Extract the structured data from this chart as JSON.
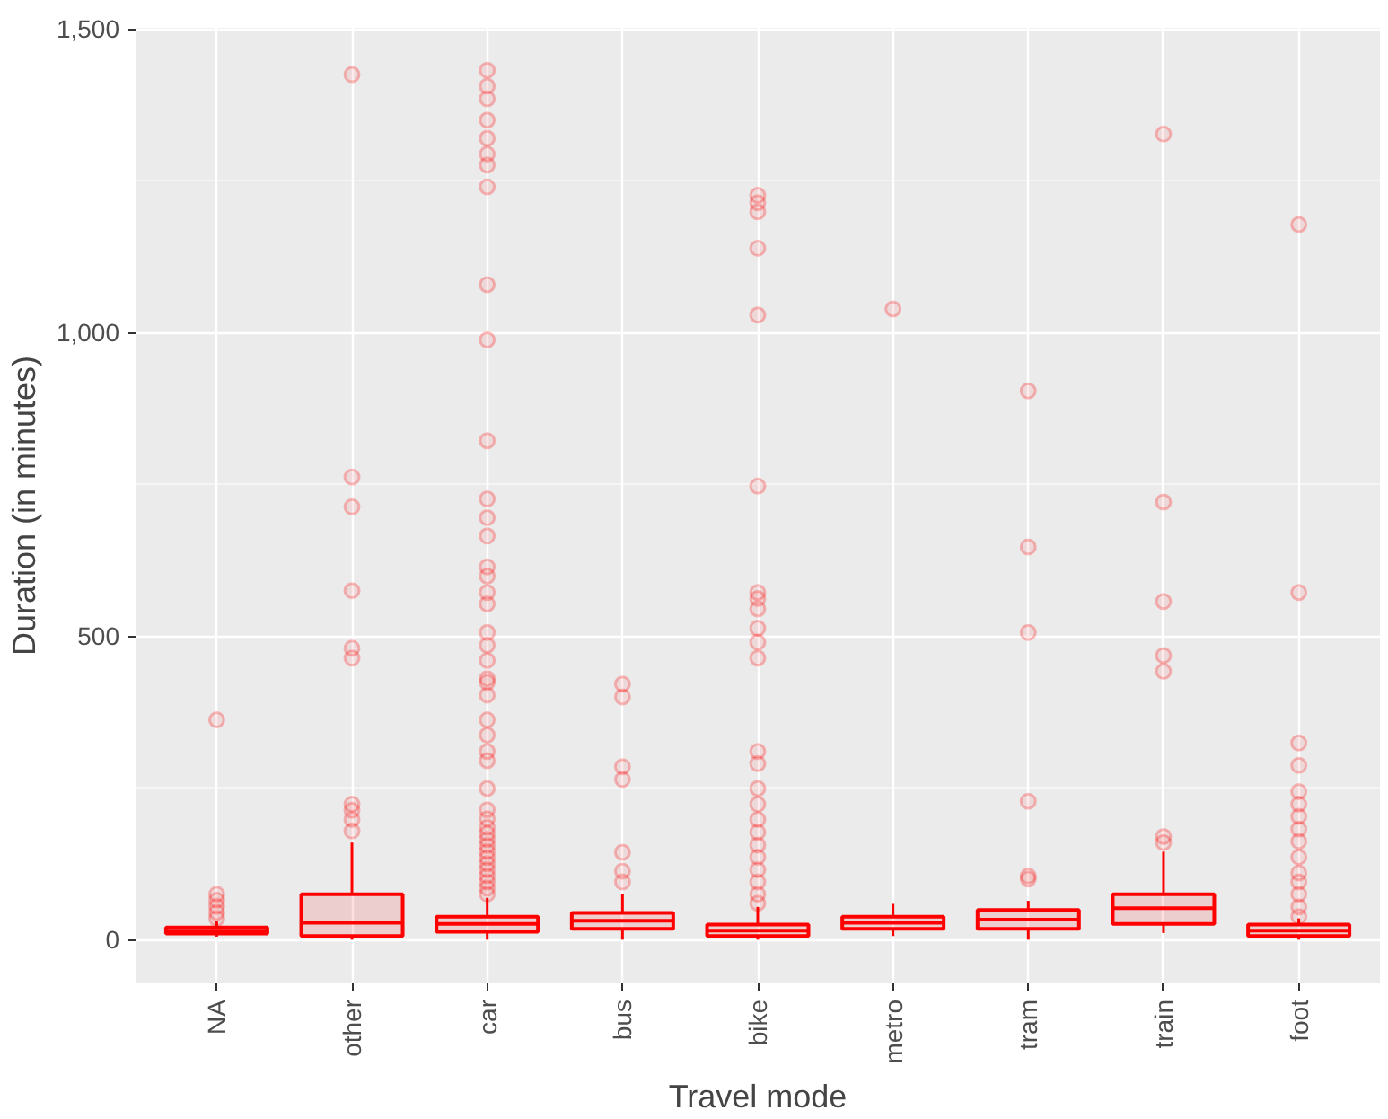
{
  "chart_data": {
    "type": "box",
    "xlabel": "Travel mode",
    "ylabel": "Duration (in minutes)",
    "categories": [
      "NA",
      "other",
      "car",
      "bus",
      "bike",
      "metro",
      "tram",
      "train",
      "foot"
    ],
    "color": "#ff0000",
    "marker": "circle",
    "grid": true,
    "ylim": [
      -72,
      1502
    ],
    "yticks": [
      0,
      500,
      {
        "value": 1000,
        "label": "1,000"
      },
      {
        "value": 1500,
        "label": "1,500"
      }
    ],
    "boxes": [
      {
        "low": 5,
        "q1": 10,
        "median": 14,
        "q3": 20,
        "high": 30,
        "outliers": [
          35,
          45,
          55,
          65,
          75,
          362
        ]
      },
      {
        "low": 0,
        "q1": 6,
        "median": 28,
        "q3": 75,
        "high": 160,
        "outliers": [
          179,
          198,
          213,
          223,
          464,
          480,
          575,
          713,
          762,
          1425
        ]
      },
      {
        "low": 0,
        "q1": 13,
        "median": 26,
        "q3": 38,
        "high": 69,
        "outliers": [
          75,
          85,
          95,
          105,
          115,
          125,
          135,
          145,
          155,
          165,
          175,
          185,
          199,
          214,
          249,
          295,
          310,
          337,
          362,
          403,
          424,
          430,
          460,
          485,
          506,
          553,
          572,
          599,
          614,
          665,
          695,
          726,
          822,
          988,
          1079,
          1240,
          1276,
          1294,
          1320,
          1350,
          1385,
          1406,
          1432
        ]
      },
      {
        "low": 0,
        "q1": 18,
        "median": 31,
        "q3": 44,
        "high": 75,
        "outliers": [
          95,
          113,
          144,
          264,
          285,
          400,
          421
        ]
      },
      {
        "low": 0,
        "q1": 6,
        "median": 15,
        "q3": 25,
        "high": 54,
        "outliers": [
          60,
          75,
          95,
          115,
          136,
          156,
          177,
          198,
          223,
          249,
          290,
          310,
          464,
          490,
          513,
          545,
          562,
          572,
          747,
          1029,
          1139,
          1199,
          1214,
          1226
        ]
      },
      {
        "low": 6,
        "q1": 18,
        "median": 28,
        "q3": 38,
        "high": 59,
        "outliers": [
          1039
        ]
      },
      {
        "low": 0,
        "q1": 18,
        "median": 33,
        "q3": 49,
        "high": 64,
        "outliers": [
          100,
          105,
          228,
          506,
          647,
          904
        ]
      },
      {
        "low": 11,
        "q1": 26,
        "median": 52,
        "q3": 75,
        "high": 145,
        "outliers": [
          160,
          170,
          442,
          468,
          557,
          721,
          1327
        ]
      },
      {
        "low": 0,
        "q1": 6,
        "median": 15,
        "q3": 25,
        "high": 35,
        "outliers": [
          38,
          54,
          75,
          95,
          110,
          136,
          162,
          182,
          203,
          223,
          244,
          287,
          324,
          572,
          1178
        ]
      }
    ]
  }
}
